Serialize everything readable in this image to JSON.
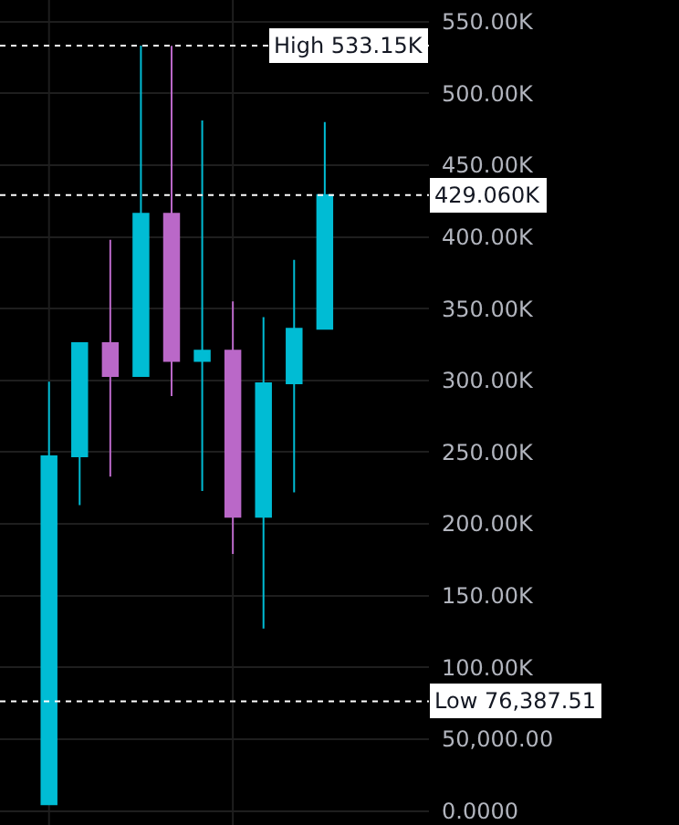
{
  "chart_data": {
    "type": "candlestick",
    "categories": [
      null,
      null,
      null,
      null,
      null,
      null,
      null,
      null,
      null,
      null
    ],
    "ohlc": [
      [
        4600,
        299000,
        4600,
        247000
      ],
      [
        247000,
        326000,
        213000,
        326000
      ],
      [
        326000,
        398000,
        233000,
        303000
      ],
      [
        303000,
        533150,
        303000,
        416000
      ],
      [
        416000,
        533000,
        289000,
        313500
      ],
      [
        313500,
        481000,
        223000,
        320700
      ],
      [
        320700,
        355000,
        179000,
        205000
      ],
      [
        205000,
        344000,
        127000,
        298000
      ],
      [
        298000,
        384000,
        222000,
        336000
      ],
      [
        336000,
        480000,
        336000,
        429060
      ]
    ],
    "colors": [
      "#00bcd4",
      "#00bcd4",
      "#ba68c8",
      "#00bcd4",
      "#ba68c8",
      "#00bcd4",
      "#ba68c8",
      "#00bcd4",
      "#00bcd4",
      "#00bcd4"
    ],
    "ylim": [
      -9800,
      565000
    ],
    "yticks": [
      {
        "value": 0,
        "label": "0.0000"
      },
      {
        "value": 50000,
        "label": "50,000.00"
      },
      {
        "value": 100000,
        "label": "100.00K"
      },
      {
        "value": 150000,
        "label": "150.00K"
      },
      {
        "value": 200000,
        "label": "200.00K"
      },
      {
        "value": 250000,
        "label": "250.00K"
      },
      {
        "value": 300000,
        "label": "300.00K"
      },
      {
        "value": 350000,
        "label": "350.00K"
      },
      {
        "value": 400000,
        "label": "400.00K"
      },
      {
        "value": 450000,
        "label": "450.00K"
      },
      {
        "value": 500000,
        "label": "500.00K"
      },
      {
        "value": 550000,
        "label": "550.00K"
      }
    ],
    "grid": true,
    "tick_labels": "y",
    "ref_lines": [
      {
        "axis": "y",
        "value": 533150,
        "label": "High 533.15K",
        "color": "#ffffff",
        "line_style": "dotted"
      },
      {
        "axis": "y",
        "value": 429060,
        "label": "429.060K",
        "color": "#ffffff",
        "line_style": "dotted"
      },
      {
        "axis": "y",
        "value": 76387.51,
        "label": "Low 76,387.51",
        "color": "#ffffff",
        "line_style": "dotted"
      }
    ]
  }
}
